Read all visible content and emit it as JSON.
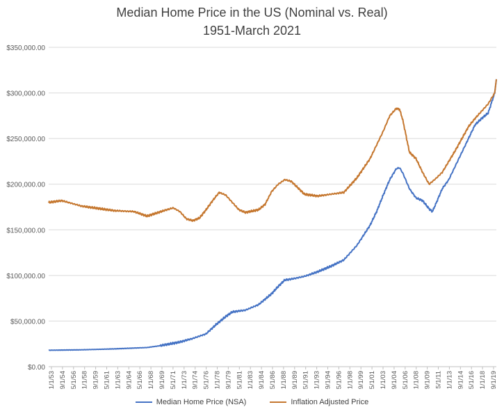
{
  "chart_data": {
    "type": "line",
    "title": "Median Home Price in the US (Nominal vs. Real)",
    "subtitle": "1951-March 2021",
    "ylim": [
      0,
      350000
    ],
    "y_ticks": [
      0,
      50000,
      100000,
      150000,
      200000,
      250000,
      300000,
      350000
    ],
    "y_tick_labels": [
      "$0.00",
      "$50,000.00",
      "$100,000.00",
      "$150,000.00",
      "$200,000.00",
      "$250,000.00",
      "$300,000.00",
      "$350,000.00"
    ],
    "x_range": [
      1953.0,
      2021.25
    ],
    "x_tick_labels": [
      "1/1/53",
      "9/1/54",
      "5/1/56",
      "1/1/58",
      "9/1/59",
      "5/1/61",
      "1/1/63",
      "9/1/64",
      "5/1/66",
      "1/1/68",
      "9/1/69",
      "5/1/71",
      "1/1/73",
      "9/1/74",
      "5/1/76",
      "1/1/78",
      "9/1/79",
      "5/1/81",
      "1/1/83",
      "9/1/84",
      "5/1/86",
      "1/1/88",
      "9/1/89",
      "5/1/91",
      "1/1/93",
      "9/1/94",
      "5/1/96",
      "1/1/98",
      "9/1/99",
      "5/1/01",
      "1/1/03",
      "9/1/04",
      "5/1/06",
      "1/1/08",
      "9/1/09",
      "5/1/11",
      "1/1/13",
      "9/1/14",
      "5/1/16",
      "1/1/18",
      "9/1/19"
    ],
    "grid": true,
    "legend_position": "bottom",
    "series": [
      {
        "name": "Median Home Price (NSA)",
        "color": "#4472C4",
        "x": [
          1953,
          1958,
          1963,
          1968,
          1970,
          1973,
          1975,
          1977,
          1978.5,
          1980,
          1981,
          1983,
          1985,
          1987,
          1988,
          1989,
          1990,
          1992,
          1994,
          1996,
          1998,
          2000,
          2002,
          2003,
          2004,
          2005,
          2006,
          2006.5,
          2007,
          2008,
          2009,
          2010,
          2011,
          2011.5,
          2012,
          2013,
          2014,
          2015,
          2016,
          2017,
          2018,
          2019,
          2020,
          2021,
          2021.25
        ],
        "y": [
          18000,
          18500,
          19500,
          21000,
          23000,
          27000,
          31000,
          36000,
          46000,
          55000,
          60000,
          62000,
          68000,
          80000,
          88000,
          95000,
          96000,
          99000,
          104000,
          110000,
          117000,
          133000,
          155000,
          170000,
          188000,
          205000,
          217000,
          218000,
          212000,
          195000,
          185000,
          182000,
          173000,
          170000,
          178000,
          195000,
          205000,
          220000,
          235000,
          250000,
          265000,
          272000,
          278000,
          300000,
          315000
        ]
      },
      {
        "name": "Inflation Adjusted Price",
        "color": "#C5772F",
        "x": [
          1953,
          1955,
          1958,
          1963,
          1966,
          1968,
          1971,
          1972,
          1973,
          1974,
          1975,
          1976,
          1977,
          1978,
          1979,
          1980,
          1981,
          1982,
          1983,
          1985,
          1986,
          1987,
          1988,
          1989,
          1990,
          1992,
          1994,
          1996,
          1998,
          2000,
          2002,
          2004,
          2005,
          2006,
          2006.5,
          2007,
          2008,
          2009,
          2010,
          2011,
          2012,
          2013,
          2014,
          2015,
          2016,
          2017,
          2018,
          2019,
          2020,
          2021,
          2021.25
        ],
        "y": [
          180000,
          182000,
          176000,
          171000,
          170000,
          165000,
          172000,
          174000,
          170000,
          162000,
          160000,
          163000,
          172000,
          182000,
          191000,
          188000,
          180000,
          172000,
          169000,
          172000,
          178000,
          192000,
          200000,
          205000,
          203000,
          189000,
          187000,
          189000,
          191000,
          207000,
          228000,
          258000,
          275000,
          283000,
          282000,
          270000,
          235000,
          228000,
          213000,
          200000,
          206000,
          213000,
          225000,
          237000,
          250000,
          263000,
          272000,
          280000,
          288000,
          300000,
          315000
        ]
      }
    ]
  }
}
